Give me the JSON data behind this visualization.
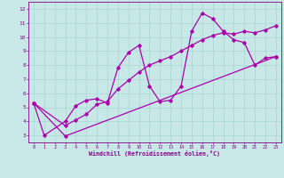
{
  "xlabel": "Windchill (Refroidissement éolien,°C)",
  "background_color": "#c8e8e8",
  "grid_color": "#a8d8d8",
  "line_color": "#aa00aa",
  "xlim": [
    -0.5,
    23.5
  ],
  "ylim": [
    2.5,
    12.5
  ],
  "xticks": [
    0,
    1,
    2,
    3,
    4,
    5,
    6,
    7,
    8,
    9,
    10,
    11,
    12,
    13,
    14,
    15,
    16,
    17,
    18,
    19,
    20,
    21,
    22,
    23
  ],
  "yticks": [
    3,
    4,
    5,
    6,
    7,
    8,
    9,
    10,
    11,
    12
  ],
  "curve1_x": [
    0,
    1,
    3,
    4,
    5,
    6,
    7,
    8,
    9,
    10,
    11,
    12,
    13,
    14,
    15,
    16,
    17,
    18,
    19,
    20,
    21,
    22,
    23
  ],
  "curve1_y": [
    5.3,
    3.0,
    4.0,
    5.1,
    5.5,
    5.6,
    5.3,
    7.8,
    8.9,
    9.4,
    6.5,
    5.4,
    5.5,
    6.5,
    10.4,
    11.7,
    11.3,
    10.4,
    9.8,
    9.6,
    8.0,
    8.5,
    8.6
  ],
  "curve2_x": [
    0,
    3,
    4,
    5,
    6,
    7,
    8,
    9,
    10,
    11,
    12,
    13,
    14,
    15,
    16,
    17,
    18,
    19,
    20,
    21,
    22,
    23
  ],
  "curve2_y": [
    5.3,
    3.7,
    4.1,
    4.5,
    5.2,
    5.4,
    6.3,
    6.9,
    7.5,
    8.0,
    8.3,
    8.6,
    9.0,
    9.4,
    9.8,
    10.1,
    10.3,
    10.2,
    10.4,
    10.3,
    10.5,
    10.8
  ],
  "curve3_x": [
    0,
    3,
    23
  ],
  "curve3_y": [
    5.3,
    2.95,
    8.6
  ]
}
